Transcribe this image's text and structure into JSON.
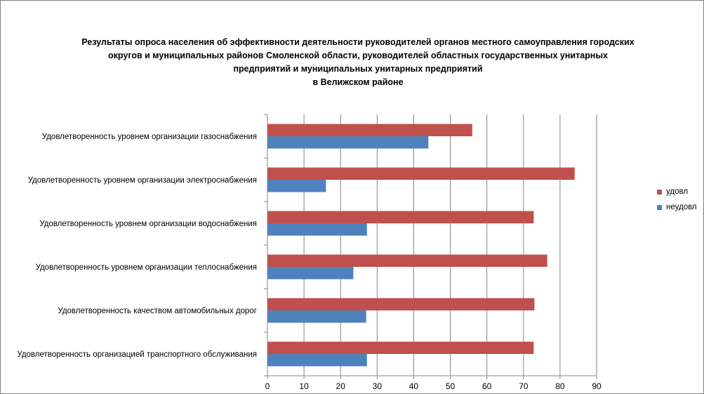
{
  "title_lines": [
    "Результаты опроса населения об эффективности деятельности руководителей органов местного самоуправления городских",
    "округов и муниципальных районов Смоленской области, руководителей областных государственных унитарных",
    "предприятий и муниципальных унитарных предприятий",
    "в Велижском районе"
  ],
  "chart_data": {
    "type": "bar",
    "orientation": "horizontal",
    "title": "Результаты опроса населения об эффективности деятельности руководителей органов местного самоуправления городских округов и муниципальных районов Смоленской области, руководителей областных государственных унитарных предприятий и муниципальных унитарных предприятий в Велижском районе",
    "categories": [
      "Удовлетворенность  уровнем  организации газоснабжения",
      "Удовлетворенность  уровнем организации электроснабжения",
      "Удовлетворенность  уровнем  организации водоснабжения",
      "Удовлетворенность  уровнем  организации теплоснабжения",
      "Удовлетворенность  качеством  автомобильных дорог",
      "Удовлетворенность  организацией  транспортного обслуживания"
    ],
    "series": [
      {
        "name": "удовл",
        "color": "#c0504d",
        "values": [
          56,
          84,
          72.8,
          76.5,
          73,
          72.8
        ]
      },
      {
        "name": "неудовл",
        "color": "#4f81bd",
        "values": [
          44,
          16,
          27.2,
          23.5,
          27,
          27.2
        ]
      }
    ],
    "xlim": [
      0,
      90
    ],
    "xticks": [
      0,
      10,
      20,
      30,
      40,
      50,
      60,
      70,
      80,
      90
    ],
    "grid": true,
    "legend_position": "right"
  }
}
